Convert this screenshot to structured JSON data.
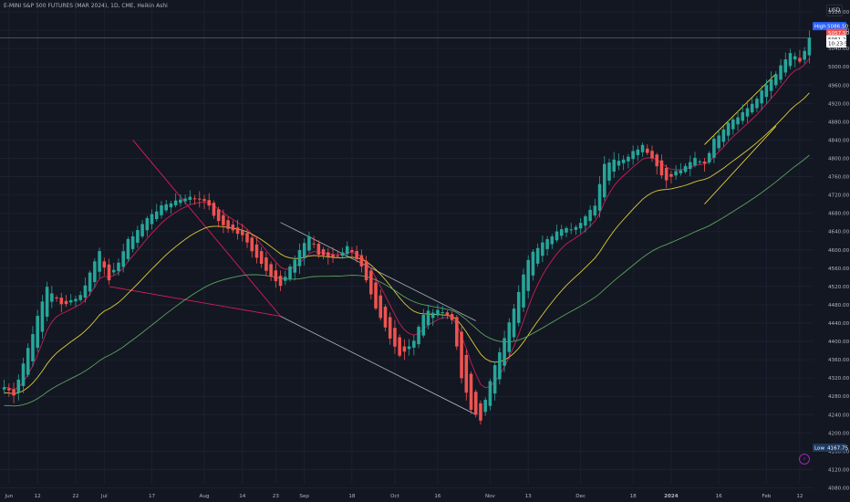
{
  "header": {
    "symbol_title": "E-MINI S&P 500 FUTURES (MAR 2024), 1D, CME, Heikin Ashi",
    "currency": "USD"
  },
  "chart_data": {
    "type": "candlestick",
    "chart_style": "Heikin Ashi",
    "colors": {
      "up": "#26a69a",
      "down": "#ef5350",
      "background": "#131722",
      "ema_fast": "#e91e63",
      "ema_mid": "#ffeb3b",
      "sma_slow": "#66bb6a"
    },
    "ylim": [
      4089,
      5146
    ],
    "y_ticks": [
      5120,
      5080,
      5040,
      5000,
      4960,
      4920,
      4880,
      4840,
      4800,
      4760,
      4720,
      4680,
      4640,
      4600,
      4560,
      4520,
      4480,
      4440,
      4400,
      4360,
      4320,
      4280,
      4240,
      4200,
      4160,
      4120,
      4080
    ],
    "x_ticks": [
      {
        "label": "Jun",
        "i": 1
      },
      {
        "label": "12",
        "i": 7
      },
      {
        "label": "22",
        "i": 15
      },
      {
        "label": "Jul",
        "i": 21
      },
      {
        "label": "17",
        "i": 31
      },
      {
        "label": "Aug",
        "i": 42
      },
      {
        "label": "14",
        "i": 50
      },
      {
        "label": "23",
        "i": 57
      },
      {
        "label": "Sep",
        "i": 63
      },
      {
        "label": "18",
        "i": 73
      },
      {
        "label": "Oct",
        "i": 82
      },
      {
        "label": "16",
        "i": 91
      },
      {
        "label": "Nov",
        "i": 102
      },
      {
        "label": "13",
        "i": 110
      },
      {
        "label": "Dec",
        "i": 121
      },
      {
        "label": "18",
        "i": 132
      },
      {
        "label": "2024",
        "i": 140
      },
      {
        "label": "16",
        "i": 150
      },
      {
        "label": "Feb",
        "i": 160
      },
      {
        "label": "12",
        "i": 167
      }
    ],
    "price_labels": {
      "high": {
        "label": "High",
        "value": "5086.50"
      },
      "last": {
        "value": "5057.50"
      },
      "current": {
        "value": "5051.25"
      },
      "countdown": {
        "value": "10:23:55"
      },
      "low": {
        "label": "Low",
        "value": "4167.75"
      }
    },
    "key_path": [
      [
        0,
        4300
      ],
      [
        2,
        4285
      ],
      [
        9,
        4520
      ],
      [
        12,
        4480
      ],
      [
        16,
        4500
      ],
      [
        20,
        4600
      ],
      [
        22,
        4530
      ],
      [
        26,
        4620
      ],
      [
        31,
        4680
      ],
      [
        34,
        4700
      ],
      [
        38,
        4715
      ],
      [
        42,
        4710
      ],
      [
        45,
        4660
      ],
      [
        50,
        4630
      ],
      [
        54,
        4570
      ],
      [
        58,
        4520
      ],
      [
        62,
        4600
      ],
      [
        64,
        4630
      ],
      [
        66,
        4590
      ],
      [
        70,
        4585
      ],
      [
        72,
        4610
      ],
      [
        75,
        4560
      ],
      [
        78,
        4470
      ],
      [
        83,
        4370
      ],
      [
        86,
        4400
      ],
      [
        88,
        4460
      ],
      [
        91,
        4470
      ],
      [
        94,
        4450
      ],
      [
        96,
        4320
      ],
      [
        98,
        4250
      ],
      [
        100,
        4230
      ],
      [
        103,
        4350
      ],
      [
        107,
        4470
      ],
      [
        110,
        4580
      ],
      [
        113,
        4620
      ],
      [
        116,
        4640
      ],
      [
        120,
        4650
      ],
      [
        124,
        4700
      ],
      [
        126,
        4790
      ],
      [
        130,
        4800
      ],
      [
        134,
        4830
      ],
      [
        136,
        4800
      ],
      [
        139,
        4750
      ],
      [
        141,
        4770
      ],
      [
        143,
        4780
      ],
      [
        145,
        4800
      ],
      [
        147,
        4790
      ],
      [
        149,
        4840
      ],
      [
        152,
        4880
      ],
      [
        155,
        4900
      ],
      [
        158,
        4930
      ],
      [
        160,
        4960
      ],
      [
        163,
        5000
      ],
      [
        165,
        5030
      ],
      [
        167,
        5010
      ],
      [
        169,
        5060
      ]
    ],
    "candle_count": 170
  }
}
